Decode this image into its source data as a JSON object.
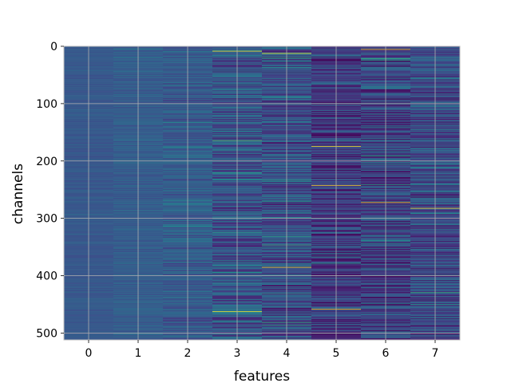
{
  "chart_data": {
    "type": "heatmap",
    "xlabel": "features",
    "ylabel": "channels",
    "x_ticks": [
      "0",
      "1",
      "2",
      "3",
      "4",
      "5",
      "6",
      "7"
    ],
    "y_ticks": [
      "0",
      "100",
      "200",
      "300",
      "400",
      "500"
    ],
    "xlim": [
      -0.5,
      7.5
    ],
    "ylim": [
      512,
      0
    ],
    "y_inverted": true,
    "rows": 512,
    "columns": 8,
    "colormap": "viridis",
    "grid": true,
    "column_profiles": [
      {
        "feature": 0,
        "mean": 0.28,
        "spread": 0.04
      },
      {
        "feature": 1,
        "mean": 0.3,
        "spread": 0.06
      },
      {
        "feature": 2,
        "mean": 0.29,
        "spread": 0.1
      },
      {
        "feature": 3,
        "mean": 0.26,
        "spread": 0.18
      },
      {
        "feature": 4,
        "mean": 0.24,
        "spread": 0.18
      },
      {
        "feature": 5,
        "mean": 0.17,
        "spread": 0.16
      },
      {
        "feature": 6,
        "mean": 0.2,
        "spread": 0.2
      },
      {
        "feature": 7,
        "mean": 0.22,
        "spread": 0.17
      }
    ],
    "notable_bright_channels": [
      {
        "feature": 3,
        "channel": 8
      },
      {
        "feature": 3,
        "channel": 462
      },
      {
        "feature": 4,
        "channel": 12
      },
      {
        "feature": 4,
        "channel": 385
      },
      {
        "feature": 5,
        "channel": 174
      },
      {
        "feature": 5,
        "channel": 242
      },
      {
        "feature": 5,
        "channel": 458
      },
      {
        "feature": 6,
        "channel": 5
      },
      {
        "feature": 6,
        "channel": 272
      },
      {
        "feature": 7,
        "channel": 282
      }
    ]
  },
  "colors": {
    "grid": "#b0b0b0",
    "frame": "#bfbfbf"
  }
}
